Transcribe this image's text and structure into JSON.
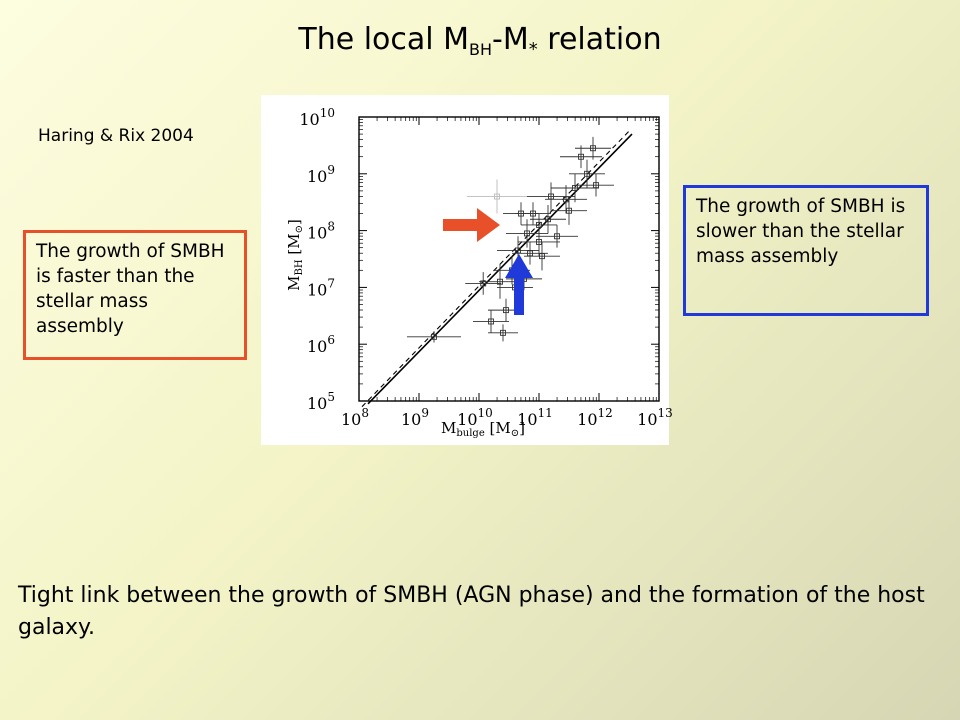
{
  "slide": {
    "title_main": "The local M",
    "title_sub1": "BH",
    "title_dash": "-M",
    "title_star": "*",
    "title_tail": " relation",
    "citation": "Haring & Rix 2004",
    "box_left": "The growth of SMBH is faster than the stellar mass assembly",
    "box_right": "The growth of SMBH is slower than the stellar mass assembly",
    "footer": "Tight link between the growth of SMBH (AGN phase) and the formation of the host galaxy.",
    "colors": {
      "orange_arrow": "#e8502a",
      "blue_arrow": "#1f3ad8"
    }
  },
  "chart_data": {
    "type": "scatter",
    "xlabel_main": "M",
    "xlabel_sub": "bulge",
    "xlabel_unit": "[M",
    "xlabel_unit_sub": "⊙",
    "xlabel_unit_close": "]",
    "ylabel_main": "M",
    "ylabel_sub": "BH",
    "ylabel_unit": "[M",
    "ylabel_unit_sub": "⊙",
    "ylabel_unit_close": "]",
    "x_scale": "log",
    "y_scale": "log",
    "xlim": [
      8,
      13
    ],
    "ylim": [
      5,
      10
    ],
    "x_ticks": [
      {
        "base": "10",
        "exp": "8",
        "v": 8
      },
      {
        "base": "10",
        "exp": "9",
        "v": 9
      },
      {
        "base": "10",
        "exp": "10",
        "v": 10
      },
      {
        "base": "10",
        "exp": "11",
        "v": 11
      },
      {
        "base": "10",
        "exp": "12",
        "v": 12
      },
      {
        "base": "10",
        "exp": "13",
        "v": 13
      }
    ],
    "y_ticks": [
      {
        "base": "10",
        "exp": "5",
        "v": 5
      },
      {
        "base": "10",
        "exp": "6",
        "v": 6
      },
      {
        "base": "10",
        "exp": "7",
        "v": 7
      },
      {
        "base": "10",
        "exp": "8",
        "v": 8
      },
      {
        "base": "10",
        "exp": "9",
        "v": 9
      },
      {
        "base": "10",
        "exp": "10",
        "v": 10
      }
    ],
    "points": [
      {
        "x": 9.25,
        "y": 6.13,
        "xerr": 0.45,
        "yerr": 0.1
      },
      {
        "x": 10.07,
        "y": 7.07,
        "xerr": 0.3,
        "yerr": 0.2
      },
      {
        "x": 10.2,
        "y": 6.4,
        "xerr": 0.3,
        "yerr": 0.2
      },
      {
        "x": 10.35,
        "y": 7.1,
        "xerr": 0.35,
        "yerr": 0.3
      },
      {
        "x": 10.4,
        "y": 6.2,
        "xerr": 0.25,
        "yerr": 0.15
      },
      {
        "x": 10.45,
        "y": 6.6,
        "xerr": 0.3,
        "yerr": 0.2
      },
      {
        "x": 10.55,
        "y": 7.3,
        "xerr": 0.3,
        "yerr": 0.25
      },
      {
        "x": 10.6,
        "y": 7.0,
        "xerr": 0.3,
        "yerr": 0.2
      },
      {
        "x": 10.65,
        "y": 7.65,
        "xerr": 0.35,
        "yerr": 0.25
      },
      {
        "x": 10.7,
        "y": 8.3,
        "xerr": 0.3,
        "yerr": 0.2
      },
      {
        "x": 10.75,
        "y": 7.15,
        "xerr": 0.3,
        "yerr": 0.2
      },
      {
        "x": 10.8,
        "y": 7.95,
        "xerr": 0.35,
        "yerr": 0.25
      },
      {
        "x": 10.85,
        "y": 7.6,
        "xerr": 0.3,
        "yerr": 0.2
      },
      {
        "x": 10.9,
        "y": 8.3,
        "xerr": 0.3,
        "yerr": 0.2
      },
      {
        "x": 11.0,
        "y": 7.8,
        "xerr": 0.35,
        "yerr": 0.25
      },
      {
        "x": 11.0,
        "y": 8.1,
        "xerr": 0.3,
        "yerr": 0.2
      },
      {
        "x": 11.05,
        "y": 7.55,
        "xerr": 0.3,
        "yerr": 0.25
      },
      {
        "x": 11.15,
        "y": 8.2,
        "xerr": 0.3,
        "yerr": 0.25
      },
      {
        "x": 11.2,
        "y": 8.6,
        "xerr": 0.4,
        "yerr": 0.25
      },
      {
        "x": 11.3,
        "y": 7.9,
        "xerr": 0.35,
        "yerr": 0.2
      },
      {
        "x": 11.45,
        "y": 8.55,
        "xerr": 0.35,
        "yerr": 0.25
      },
      {
        "x": 11.5,
        "y": 8.35,
        "xerr": 0.3,
        "yerr": 0.25
      },
      {
        "x": 11.6,
        "y": 8.75,
        "xerr": 0.4,
        "yerr": 0.25
      },
      {
        "x": 11.7,
        "y": 9.3,
        "xerr": 0.35,
        "yerr": 0.2
      },
      {
        "x": 11.8,
        "y": 9.0,
        "xerr": 0.3,
        "yerr": 0.25
      },
      {
        "x": 11.9,
        "y": 9.45,
        "xerr": 0.3,
        "yerr": 0.2
      },
      {
        "x": 11.95,
        "y": 8.8,
        "xerr": 0.3,
        "yerr": 0.2
      }
    ],
    "faint_points": [
      {
        "x": 10.3,
        "y": 8.6,
        "xerr": 0.5,
        "yerr": 0.3
      }
    ],
    "fit_solid": [
      [
        8.15,
        4.95
      ],
      [
        12.55,
        9.7
      ]
    ],
    "fit_dashed": [
      [
        8.05,
        4.9
      ],
      [
        12.5,
        9.75
      ]
    ],
    "grid": false
  }
}
